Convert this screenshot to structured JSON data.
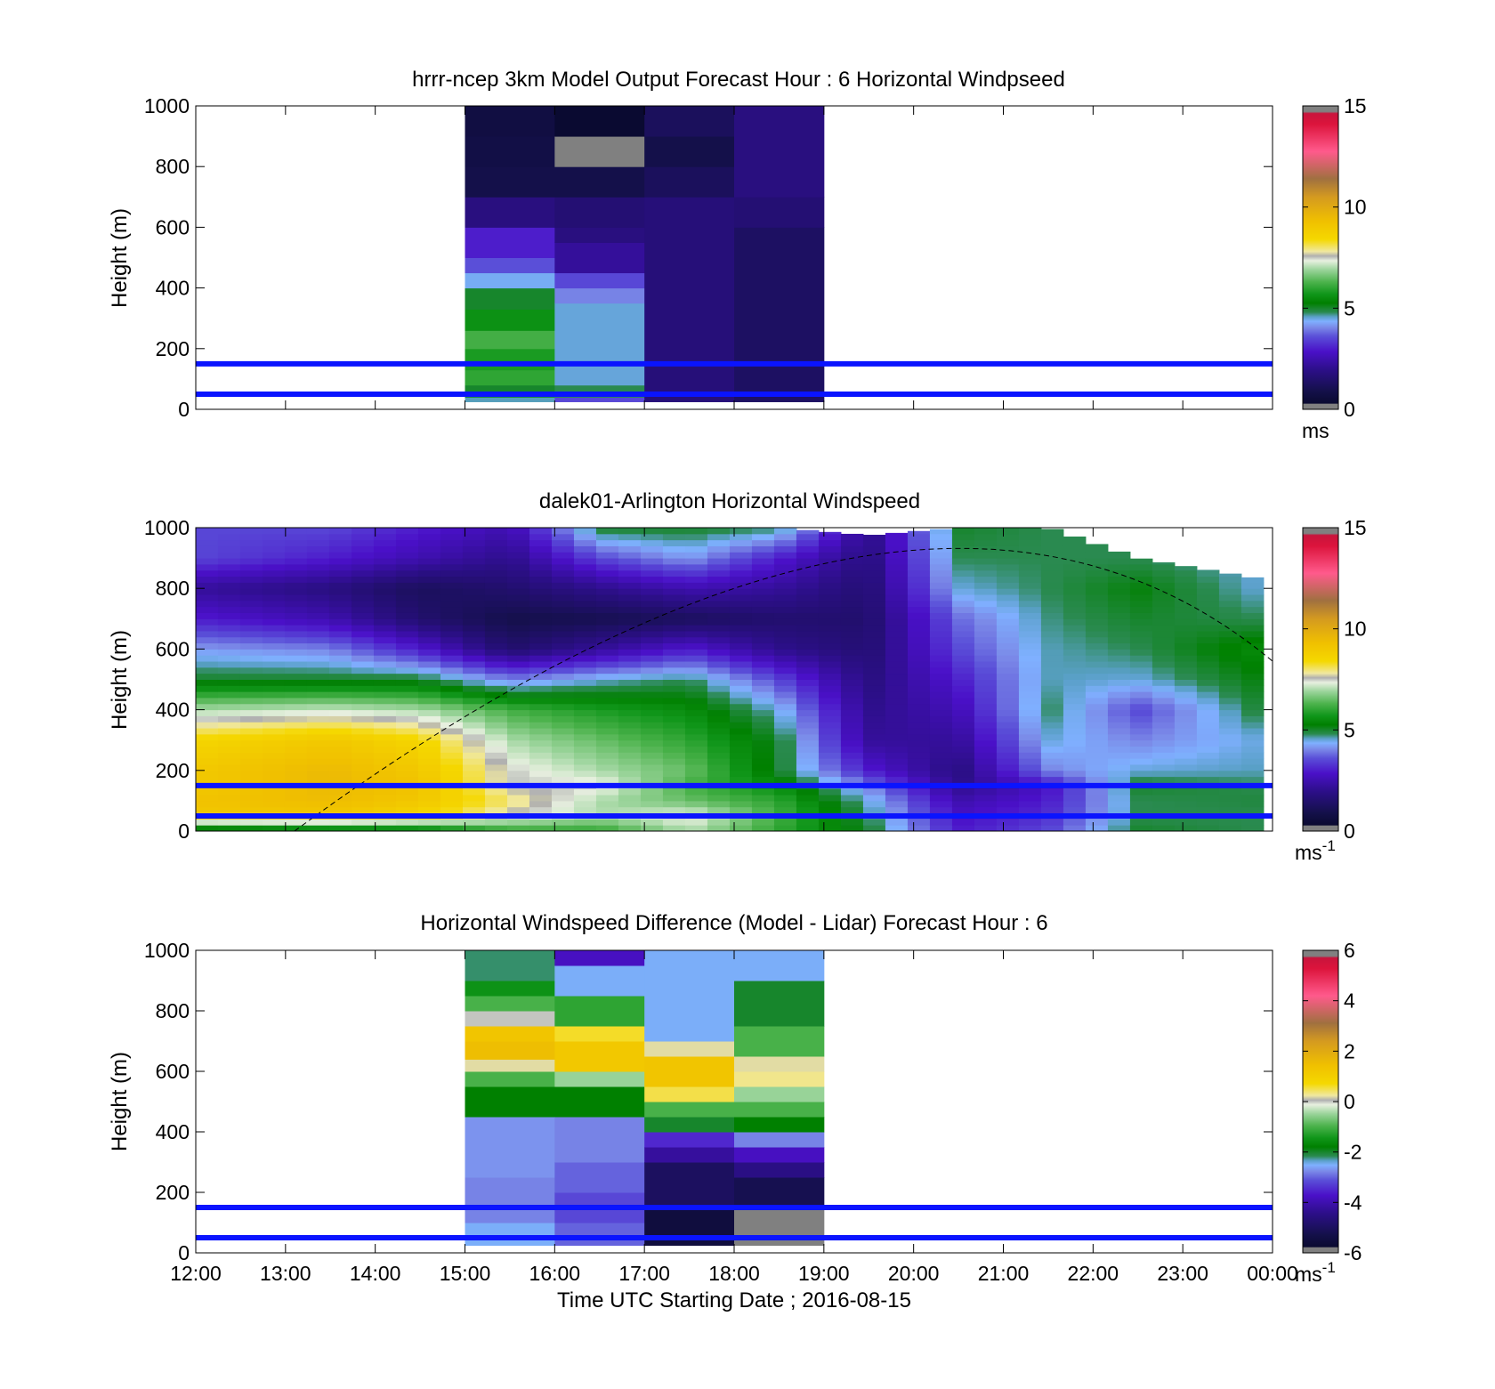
{
  "chart_data": [
    {
      "type": "heatmap",
      "title": "hrrr-ncep 3km Model Output   Forecast Hour : 6 Horizontal Windpseed",
      "xlabel": "",
      "ylabel": "Height (m)",
      "xlim": [
        12,
        24
      ],
      "ylim": [
        0,
        1000
      ],
      "x_ticks": [
        "12:00",
        "13:00",
        "14:00",
        "15:00",
        "16:00",
        "17:00",
        "18:00",
        "19:00",
        "20:00",
        "21:00",
        "22:00",
        "23:00",
        "00:00"
      ],
      "y_ticks": [
        "0",
        "200",
        "400",
        "600",
        "800",
        "1000"
      ],
      "colorbar": {
        "min": 0,
        "max": 15,
        "ticks": [
          "0",
          "5",
          "10",
          "15"
        ],
        "unit_base": "ms",
        "unit_sup": ""
      },
      "reference_heights_m": [
        50,
        150
      ],
      "data_extent": {
        "x": [
          15,
          19
        ],
        "y": [
          25,
          1000
        ]
      },
      "columns": [
        {
          "x": [
            15,
            16
          ],
          "cells": [
            [
              25,
              40,
              4.6
            ],
            [
              40,
              80,
              5.0
            ],
            [
              80,
              130,
              6.0
            ],
            [
              130,
              200,
              5.8
            ],
            [
              200,
              260,
              6.2
            ],
            [
              260,
              330,
              5.6
            ],
            [
              330,
              400,
              5.0
            ],
            [
              400,
              450,
              4.4
            ],
            [
              450,
              500,
              3.6
            ],
            [
              500,
              600,
              3.0
            ],
            [
              600,
              700,
              1.8
            ],
            [
              700,
              800,
              0.9
            ],
            [
              800,
              900,
              0.8
            ],
            [
              900,
              1000,
              0.7
            ]
          ]
        },
        {
          "x": [
            16,
            17
          ],
          "cells": [
            [
              25,
              40,
              3.5
            ],
            [
              40,
              80,
              4.8
            ],
            [
              80,
              150,
              4.5
            ],
            [
              150,
              350,
              4.5
            ],
            [
              350,
              400,
              4.0
            ],
            [
              400,
              450,
              3.5
            ],
            [
              450,
              550,
              2.2
            ],
            [
              550,
              600,
              1.8
            ],
            [
              600,
              700,
              1.6
            ],
            [
              700,
              800,
              0.9
            ],
            [
              800,
              900,
              -1
            ],
            [
              900,
              1000,
              0.3
            ]
          ]
        },
        {
          "x": [
            17,
            18
          ],
          "cells": [
            [
              25,
              700,
              1.7
            ],
            [
              700,
              800,
              1.2
            ],
            [
              800,
              900,
              0.9
            ],
            [
              900,
              1000,
              1.2
            ]
          ]
        },
        {
          "x": [
            18,
            19
          ],
          "cells": [
            [
              25,
              600,
              1.3
            ],
            [
              600,
              700,
              1.6
            ],
            [
              700,
              1000,
              1.8
            ]
          ]
        }
      ]
    },
    {
      "type": "heatmap",
      "title": "dalek01-Arlington  Horizontal Windspeed",
      "xlabel": "",
      "ylabel": "Height (m)",
      "xlim": [
        12,
        24
      ],
      "ylim": [
        0,
        1000
      ],
      "x_ticks": [
        "12:00",
        "13:00",
        "14:00",
        "15:00",
        "16:00",
        "17:00",
        "18:00",
        "19:00",
        "20:00",
        "21:00",
        "22:00",
        "23:00",
        "00:00"
      ],
      "y_ticks": [
        "0",
        "200",
        "400",
        "600",
        "800",
        "1000"
      ],
      "colorbar": {
        "min": 0,
        "max": 15,
        "ticks": [
          "0",
          "5",
          "10",
          "15"
        ],
        "unit_base": "ms",
        "unit_sup": "-1"
      },
      "reference_heights_m": [
        50,
        150
      ],
      "data_extent": {
        "x": [
          12,
          23.9
        ],
        "y": [
          0,
          1000
        ]
      },
      "profiles_time_h": [
        12.0,
        13.5,
        14.5,
        15.5,
        16.5,
        17.5,
        18.5,
        19.5,
        20.5,
        21.5,
        22.5,
        23.9
      ],
      "profiles_height_m": [
        0,
        50,
        100,
        150,
        200,
        300,
        400,
        500,
        600,
        700,
        800,
        900,
        1000
      ],
      "profiles_speed_ms": [
        [
          4.5,
          9.0,
          9.2,
          9.0,
          9.0,
          8.5,
          7.0,
          5.0,
          4.2,
          3.0,
          2.2,
          3.5,
          3.5
        ],
        [
          4.8,
          9.0,
          9.4,
          9.5,
          9.5,
          9.0,
          7.2,
          5.0,
          4.0,
          2.5,
          1.8,
          3.0,
          3.5
        ],
        [
          5.0,
          8.5,
          9.0,
          9.2,
          9.0,
          8.5,
          7.0,
          5.0,
          3.0,
          1.5,
          1.2,
          2.5,
          3.0
        ],
        [
          6.0,
          7.5,
          8.0,
          7.5,
          7.5,
          7.0,
          6.2,
          4.0,
          1.5,
          0.9,
          1.5,
          2.0,
          2.5
        ],
        [
          6.0,
          7.0,
          7.0,
          7.5,
          7.0,
          6.5,
          5.8,
          4.5,
          2.2,
          1.0,
          2.0,
          3.5,
          5.0
        ],
        [
          7.0,
          7.5,
          6.5,
          6.2,
          6.5,
          6.0,
          5.5,
          4.8,
          3.0,
          1.2,
          2.5,
          4.2,
          5.0
        ],
        [
          6.0,
          6.2,
          6.0,
          5.5,
          5.0,
          5.0,
          4.5,
          3.5,
          2.0,
          1.5,
          2.2,
          3.0,
          4.8
        ],
        [
          5.0,
          4.8,
          4.5,
          4.0,
          3.0,
          2.2,
          2.0,
          1.8,
          1.6,
          1.5,
          1.6,
          1.8,
          2.0
        ],
        [
          3.0,
          2.8,
          2.5,
          2.0,
          1.8,
          2.2,
          2.6,
          3.0,
          3.5,
          3.8,
          4.5,
          4.8,
          5.0
        ],
        [
          3.5,
          3.2,
          3.0,
          2.8,
          4.0,
          4.5,
          4.8,
          4.6,
          4.6,
          4.7,
          4.8,
          4.8,
          4.8
        ],
        [
          5.0,
          4.8,
          4.8,
          5.0,
          4.5,
          4.0,
          3.5,
          4.5,
          4.8,
          5.0,
          5.2,
          4.8,
          4.8
        ],
        [
          4.8,
          4.8,
          4.9,
          4.8,
          4.6,
          4.5,
          5.0,
          5.2,
          5.5,
          4.8,
          4.5,
          4.5,
          4.5
        ]
      ],
      "profiles_top_m": [
        1000,
        1000,
        1000,
        1000,
        1000,
        1000,
        1000,
        975,
        1000,
        1000,
        900,
        830
      ],
      "dashed_curve": {
        "x_h": [
          13.1,
          20.1,
          24.0
        ],
        "y_m": [
          0,
          900,
          560
        ]
      }
    },
    {
      "type": "heatmap",
      "title": "Horizontal Windspeed Difference (Model - Lidar) Forecast Hour : 6",
      "xlabel": "Time UTC  Starting Date ; 2016-08-15",
      "ylabel": "Height (m)",
      "xlim": [
        12,
        24
      ],
      "ylim": [
        0,
        1000
      ],
      "x_ticks": [
        "12:00",
        "13:00",
        "14:00",
        "15:00",
        "16:00",
        "17:00",
        "18:00",
        "19:00",
        "20:00",
        "21:00",
        "22:00",
        "23:00",
        "00:00"
      ],
      "y_ticks": [
        "0",
        "200",
        "400",
        "600",
        "800",
        "1000"
      ],
      "colorbar": {
        "min": -6,
        "max": 6,
        "ticks": [
          "-6",
          "-4",
          "-2",
          "0",
          "2",
          "4",
          "6"
        ],
        "unit_base": "ms",
        "unit_sup": "-1"
      },
      "reference_heights_m": [
        50,
        150
      ],
      "data_extent": {
        "x": [
          15,
          19
        ],
        "y": [
          25,
          1000
        ]
      },
      "columns": [
        {
          "x": [
            15,
            16
          ],
          "cells": [
            [
              25,
              100,
              -2.5
            ],
            [
              100,
              250,
              -2.8
            ],
            [
              250,
              450,
              -2.7
            ],
            [
              450,
              550,
              -1.8
            ],
            [
              550,
              600,
              -1.0
            ],
            [
              600,
              640,
              0.2
            ],
            [
              640,
              700,
              1.5
            ],
            [
              700,
              750,
              1.3
            ],
            [
              750,
              800,
              0.0
            ],
            [
              800,
              850,
              -1.0
            ],
            [
              850,
              900,
              -1.5
            ],
            [
              900,
              1000,
              -2.2
            ]
          ]
        },
        {
          "x": [
            16,
            17
          ],
          "cells": [
            [
              25,
              100,
              -3.0
            ],
            [
              100,
              200,
              -3.2
            ],
            [
              200,
              300,
              -3.0
            ],
            [
              300,
              450,
              -2.8
            ],
            [
              450,
              550,
              -1.8
            ],
            [
              550,
              600,
              -0.5
            ],
            [
              600,
              700,
              1.2
            ],
            [
              700,
              750,
              0.6
            ],
            [
              750,
              850,
              -1.2
            ],
            [
              850,
              950,
              -2.5
            ],
            [
              950,
              1000,
              -3.8
            ]
          ]
        },
        {
          "x": [
            17,
            18
          ],
          "cells": [
            [
              25,
              150,
              -5.5
            ],
            [
              150,
              300,
              -5.0
            ],
            [
              300,
              350,
              -4.2
            ],
            [
              350,
              400,
              -3.5
            ],
            [
              400,
              450,
              -2.0
            ],
            [
              450,
              500,
              -1.0
            ],
            [
              500,
              550,
              0.5
            ],
            [
              550,
              650,
              1.3
            ],
            [
              650,
              700,
              0.2
            ],
            [
              700,
              1000,
              -2.5
            ]
          ]
        },
        {
          "x": [
            18,
            19
          ],
          "cells": [
            [
              25,
              150,
              -5.8
            ],
            [
              150,
              250,
              -5.2
            ],
            [
              250,
              300,
              -4.5
            ],
            [
              300,
              350,
              -3.8
            ],
            [
              350,
              400,
              -2.8
            ],
            [
              400,
              450,
              -1.8
            ],
            [
              450,
              500,
              -1.0
            ],
            [
              500,
              550,
              -0.5
            ],
            [
              550,
              600,
              0.3
            ],
            [
              600,
              650,
              0.2
            ],
            [
              650,
              750,
              -1.0
            ],
            [
              750,
              900,
              -2.0
            ],
            [
              900,
              1000,
              -2.5
            ]
          ]
        }
      ]
    }
  ]
}
